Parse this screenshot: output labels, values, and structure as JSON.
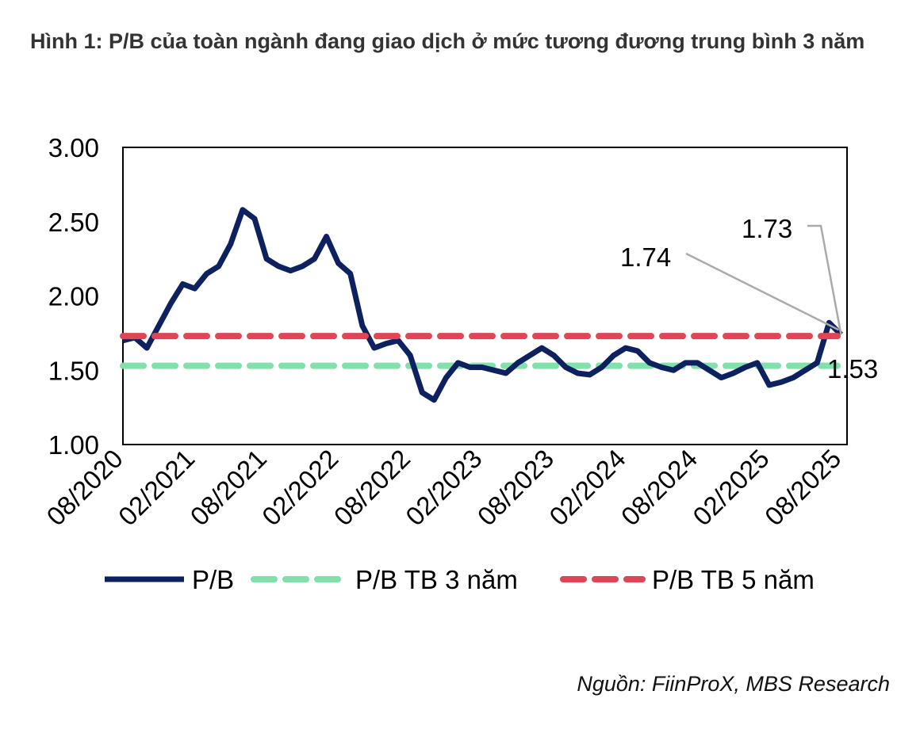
{
  "title": "Hình 1: P/B của toàn ngành đang giao dịch ở mức tương đương trung bình 3 năm",
  "source": "Nguồn: FiinProX, MBS Research",
  "chart_data": {
    "type": "line",
    "ylim": [
      1.0,
      3.0
    ],
    "yticks": [
      "3.00",
      "2.50",
      "2.00",
      "1.50",
      "1.00"
    ],
    "ytick_values": [
      3.0,
      2.5,
      2.0,
      1.5,
      1.0
    ],
    "xticks": [
      "08/2020",
      "02/2021",
      "08/2021",
      "02/2022",
      "08/2022",
      "02/2023",
      "08/2023",
      "02/2024",
      "08/2024",
      "02/2025",
      "08/2025"
    ],
    "x_months_start": "08/2020",
    "series": [
      {
        "name": "P/B",
        "color": "#0d2160",
        "style": "solid",
        "values": [
          1.7,
          1.72,
          1.65,
          1.8,
          1.95,
          2.08,
          2.05,
          2.15,
          2.2,
          2.35,
          2.58,
          2.52,
          2.25,
          2.2,
          2.17,
          2.2,
          2.25,
          2.4,
          2.22,
          2.15,
          1.8,
          1.65,
          1.68,
          1.7,
          1.6,
          1.35,
          1.3,
          1.45,
          1.55,
          1.52,
          1.52,
          1.5,
          1.48,
          1.55,
          1.6,
          1.65,
          1.6,
          1.52,
          1.48,
          1.47,
          1.52,
          1.6,
          1.65,
          1.63,
          1.55,
          1.52,
          1.5,
          1.55,
          1.55,
          1.5,
          1.45,
          1.48,
          1.52,
          1.55,
          1.4,
          1.42,
          1.45,
          1.5,
          1.55,
          1.82,
          1.74
        ]
      },
      {
        "name": "P/B TB 3 năm",
        "color": "#82e0aa",
        "style": "dashed",
        "value": 1.53
      },
      {
        "name": "P/B TB 5 năm",
        "color": "#e04555",
        "style": "dashed",
        "value": 1.73
      }
    ],
    "annotations": [
      "1.74",
      "1.73",
      "1.53"
    ],
    "legend_position": "bottom"
  }
}
